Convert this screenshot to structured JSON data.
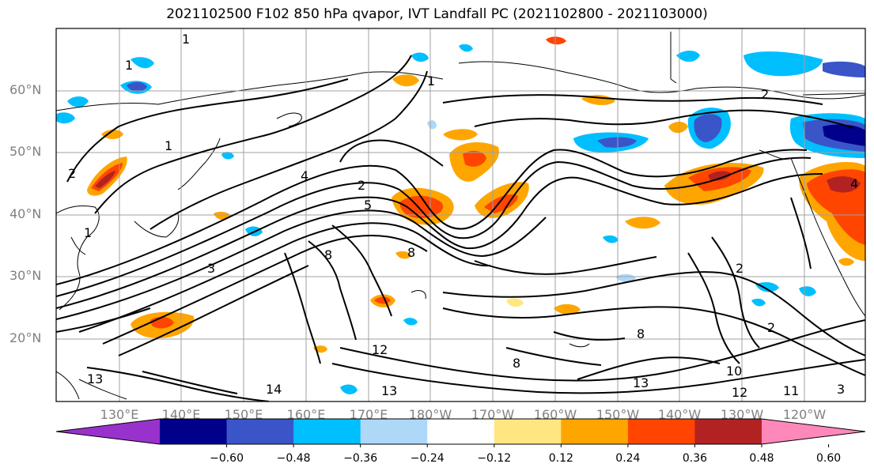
{
  "title": "2021102500 F102 850 hPa qvapor, IVT Landfall PC (2021102800 - 2021103000)",
  "lat_labels": [
    "60°N",
    "50°N",
    "40°N",
    "30°N",
    "20°N"
  ],
  "lon_labels": [
    "130°E",
    "140°E",
    "150°E",
    "160°E",
    "170°E",
    "180°W",
    "170°W",
    "160°W",
    "150°W",
    "140°W",
    "130°W",
    "120°W"
  ],
  "contour_labels": [
    "1",
    "1",
    "1",
    "1",
    "1",
    "2",
    "2",
    "2",
    "2",
    "2",
    "4",
    "4",
    "5",
    "8",
    "8",
    "8",
    "8",
    "10",
    "11",
    "12",
    "12",
    "13",
    "13",
    "13",
    "14",
    "3",
    "3"
  ],
  "colorbar": {
    "ticks": [
      "−0.60",
      "−0.48",
      "−0.36",
      "−0.24",
      "−0.12",
      "0.12",
      "0.24",
      "0.36",
      "0.48",
      "0.60"
    ],
    "colors": [
      "#9932cc",
      "#00008b",
      "#3a55c8",
      "#00bfff",
      "#add8f8",
      "#ffffff",
      "#ffe680",
      "#ffa500",
      "#ff4500",
      "#b22222",
      "#ff88bb"
    ]
  },
  "colors": {
    "contour": "#000000",
    "grid": "#a0a0a0",
    "axis_label": "#808080"
  }
}
